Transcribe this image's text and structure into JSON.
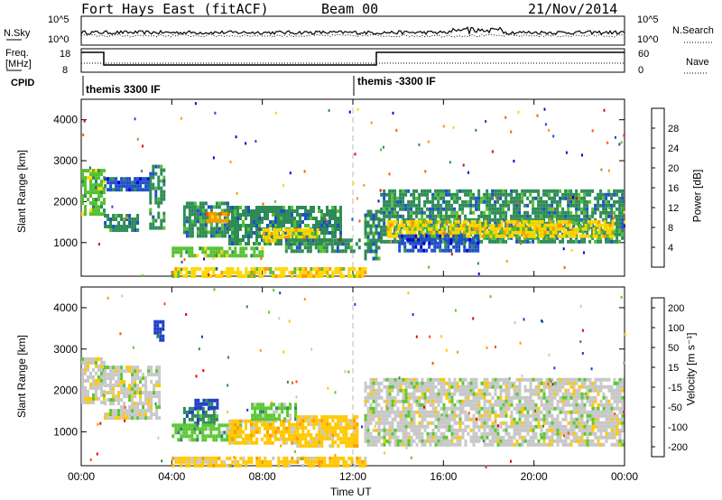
{
  "header": {
    "station": "Fort Hays East (fitACF)",
    "beam": "Beam 00",
    "date": "21/Nov/2014"
  },
  "panels": {
    "nsky_label": "N.Sky",
    "nsky_ticks": [
      "10^5",
      "10^0"
    ],
    "nsearch_label": "N.Search",
    "nsearch_ticks": [
      "10^5",
      "10^0"
    ],
    "freq_label": "Freq.",
    "freq_unit": "[MHz]",
    "freq_ticks": [
      "18",
      "8"
    ],
    "nave_label": "Nave",
    "nave_ticks": [
      "60",
      "0"
    ],
    "cpid_label": "CPID",
    "cpid_segments": [
      "themis 3300 IF",
      "themis -3300 IF"
    ]
  },
  "chart_data": [
    {
      "type": "heatmap",
      "name": "power",
      "ylabel": "Slant Range [km]",
      "ylim": [
        180,
        4500
      ],
      "yticks": [
        1000,
        2000,
        3000,
        4000
      ],
      "xlim": [
        0,
        24
      ],
      "xticks": [
        "00:00",
        "04:00",
        "08:00",
        "12:00",
        "16:00",
        "20:00",
        "00:00"
      ],
      "colorbar_label": "Power [dB]",
      "colorbar_ticks": [
        4,
        8,
        12,
        16,
        20,
        24,
        28
      ],
      "colors": [
        "#0000dc",
        "#1e50c8",
        "#2e8b57",
        "#55c030",
        "#ffd700",
        "#ff9900",
        "#ff5a00",
        "#e60000"
      ],
      "regions": [
        {
          "t": [
            0.0,
            1.0
          ],
          "r": [
            1700,
            2800
          ],
          "level": 3
        },
        {
          "t": [
            1.0,
            2.5
          ],
          "r": [
            1300,
            1700
          ],
          "level": 2
        },
        {
          "t": [
            1.0,
            3.0
          ],
          "r": [
            2300,
            2600
          ],
          "level": 1
        },
        {
          "t": [
            3.0,
            3.6
          ],
          "r": [
            1400,
            2900
          ],
          "level": 2
        },
        {
          "t": [
            4.5,
            6.5
          ],
          "r": [
            1200,
            2000
          ],
          "level": 2
        },
        {
          "t": [
            5.5,
            6.5
          ],
          "r": [
            1500,
            1750
          ],
          "level": 5
        },
        {
          "t": [
            6.5,
            11.5
          ],
          "r": [
            1000,
            1900
          ],
          "level": 2
        },
        {
          "t": [
            8.0,
            10.5
          ],
          "r": [
            1050,
            1350
          ],
          "level": 4
        },
        {
          "t": [
            4.0,
            8.0
          ],
          "r": [
            650,
            900
          ],
          "level": 3
        },
        {
          "t": [
            9.0,
            12.3
          ],
          "r": [
            750,
            1100
          ],
          "level": 2
        },
        {
          "t": [
            12.5,
            13.2
          ],
          "r": [
            600,
            1800
          ],
          "level": 2
        },
        {
          "t": [
            13.2,
            23.9
          ],
          "r": [
            1000,
            2300
          ],
          "level": 2
        },
        {
          "t": [
            13.5,
            23.5
          ],
          "r": [
            1150,
            1550
          ],
          "level": 4
        },
        {
          "t": [
            14.0,
            17.5
          ],
          "r": [
            800,
            1200
          ],
          "level": 1
        },
        {
          "t": [
            4.0,
            12.5
          ],
          "r": [
            200,
            400
          ],
          "level": 4
        }
      ]
    },
    {
      "type": "heatmap",
      "name": "velocity",
      "ylabel": "Slant Range [km]",
      "ylim": [
        180,
        4500
      ],
      "yticks": [
        1000,
        2000,
        3000,
        4000
      ],
      "xlim": [
        0,
        24
      ],
      "xticks": [
        "00:00",
        "04:00",
        "08:00",
        "12:00",
        "16:00",
        "20:00",
        "00:00"
      ],
      "xlabel": "Time UT",
      "colorbar_label": "Velocity [m s⁻¹]",
      "colorbar_ticks": [
        200,
        100,
        50,
        15,
        -15,
        -50,
        -100,
        -200
      ],
      "colors": [
        "#1e3cc8",
        "#2e8b57",
        "#5ac832",
        "#c8c8c8",
        "#ffc800",
        "#ff9900",
        "#ff5000",
        "#e60000"
      ],
      "regions": [
        {
          "t": [
            0.0,
            1.0
          ],
          "r": [
            1700,
            2800
          ],
          "level": 3
        },
        {
          "t": [
            1.0,
            3.5
          ],
          "r": [
            1300,
            2600
          ],
          "level": 3
        },
        {
          "t": [
            3.2,
            3.6
          ],
          "r": [
            3200,
            3700
          ],
          "level": 0
        },
        {
          "t": [
            4.5,
            6.0
          ],
          "r": [
            1200,
            1600
          ],
          "level": 1
        },
        {
          "t": [
            5.0,
            6.0
          ],
          "r": [
            1600,
            1800
          ],
          "level": 0
        },
        {
          "t": [
            4.0,
            7.0
          ],
          "r": [
            800,
            1200
          ],
          "level": 2
        },
        {
          "t": [
            6.5,
            9.5
          ],
          "r": [
            700,
            1300
          ],
          "level": 4
        },
        {
          "t": [
            7.5,
            9.5
          ],
          "r": [
            1300,
            1700
          ],
          "level": 2
        },
        {
          "t": [
            9.5,
            12.2
          ],
          "r": [
            700,
            1400
          ],
          "level": 4
        },
        {
          "t": [
            12.5,
            23.9
          ],
          "r": [
            700,
            2300
          ],
          "level": 3
        },
        {
          "t": [
            4.0,
            12.5
          ],
          "r": [
            200,
            400
          ],
          "level": 4
        }
      ]
    }
  ]
}
